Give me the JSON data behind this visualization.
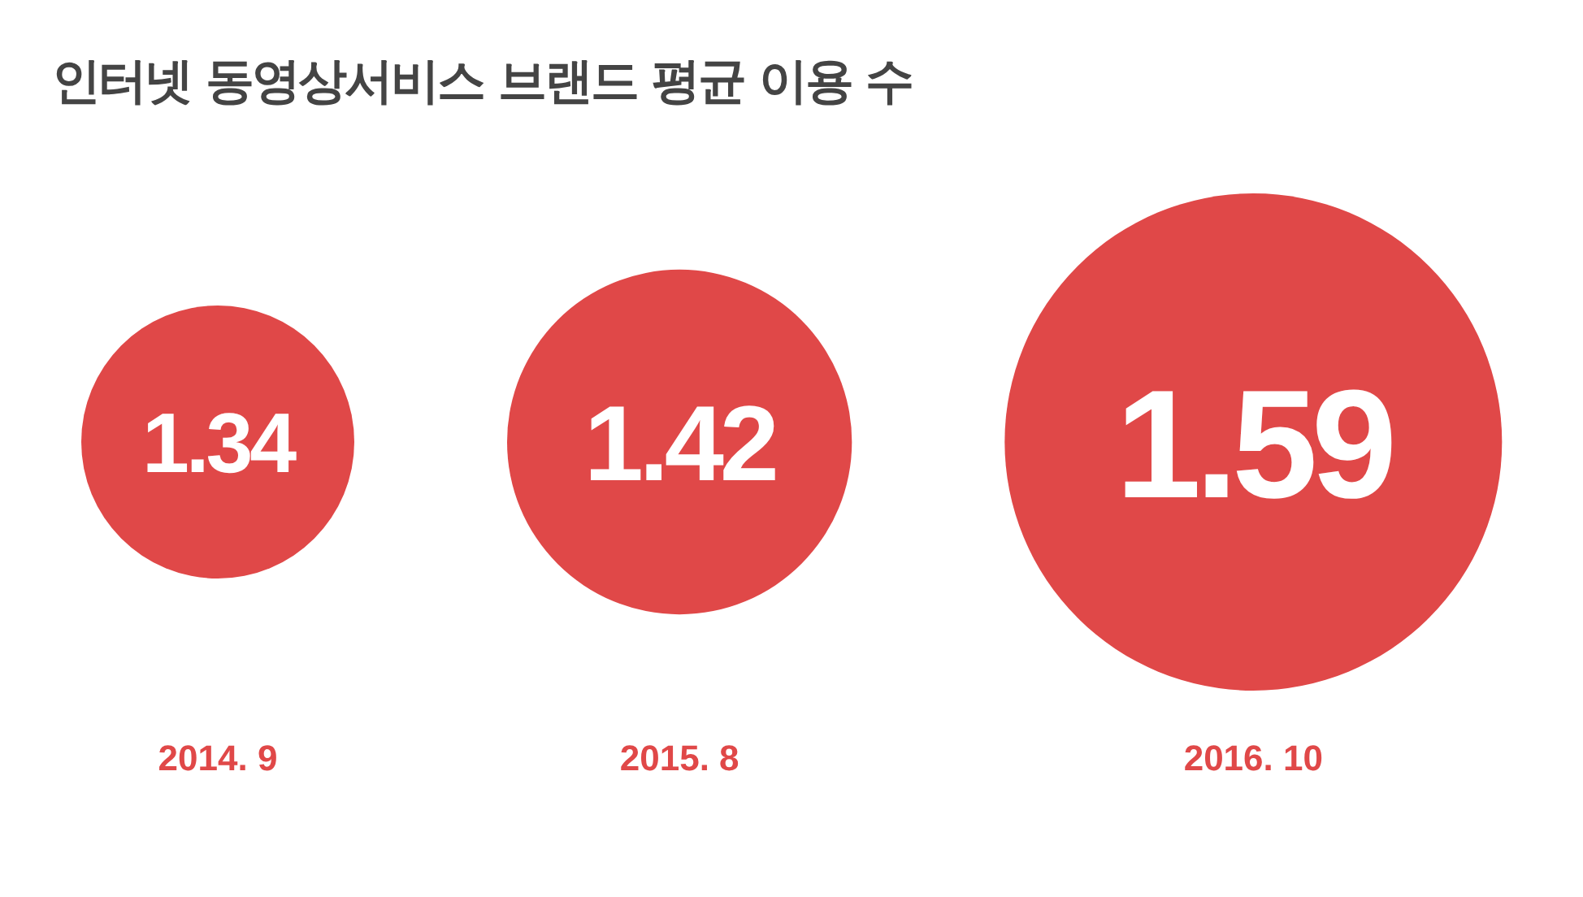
{
  "chart_data": {
    "type": "other",
    "title": "인터넷 동영상서비스 브랜드 평균 이용 수",
    "categories": [
      "2014. 9",
      "2015. 8",
      "2016. 10"
    ],
    "values": [
      1.34,
      1.42,
      1.59
    ],
    "color": "#e04848",
    "data_labels": true
  }
}
